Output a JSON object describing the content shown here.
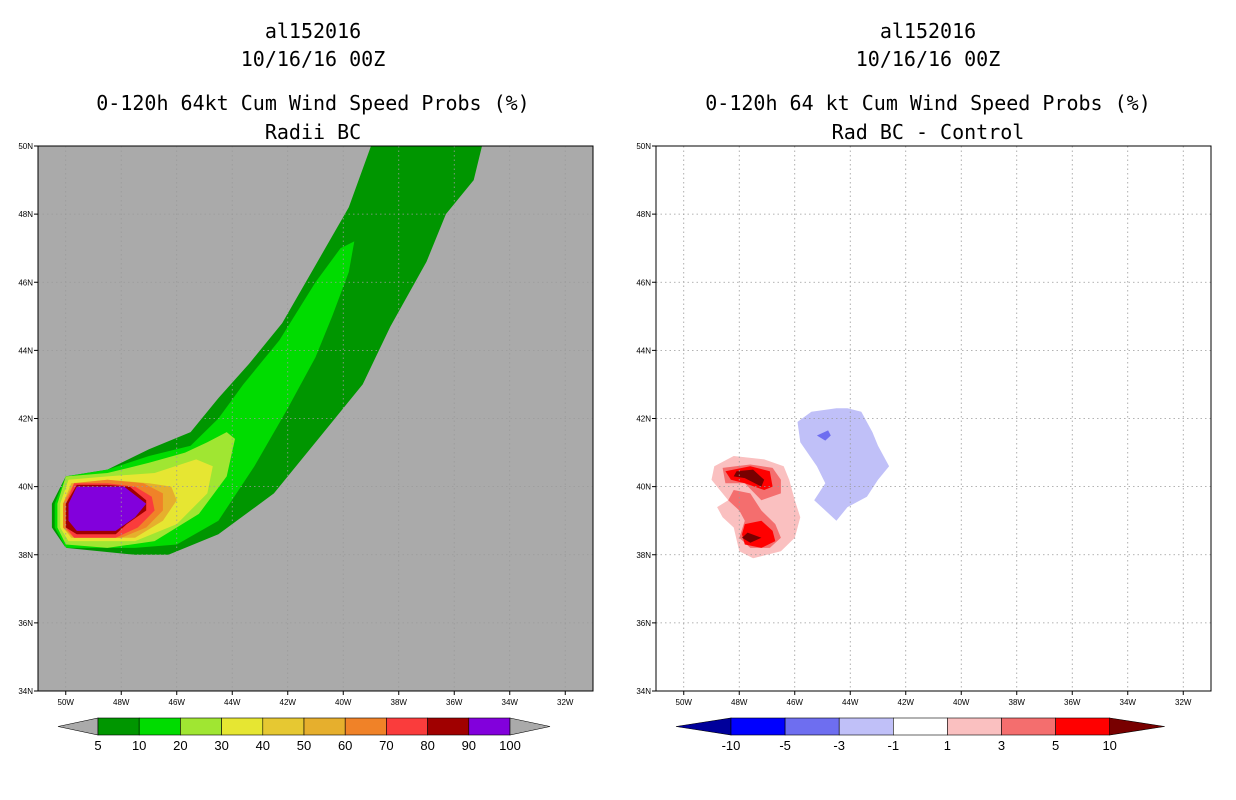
{
  "chart_data": [
    {
      "type": "heatmap",
      "title_lines": [
        "al152016",
        "10/16/16 00Z",
        "0-120h 64kt Cum Wind Speed Probs (%)",
        "Radii BC"
      ],
      "xlabel": "",
      "ylabel": "",
      "xlim": [
        -51,
        -31
      ],
      "ylim": [
        34,
        50
      ],
      "x_ticks": [
        "50W",
        "48W",
        "46W",
        "44W",
        "42W",
        "40W",
        "38W",
        "36W",
        "34W",
        "32W"
      ],
      "x_tick_values": [
        -50,
        -48,
        -46,
        -44,
        -42,
        -40,
        -38,
        -36,
        -34,
        -32
      ],
      "y_ticks": [
        "34N",
        "36N",
        "38N",
        "40N",
        "42N",
        "44N",
        "46N",
        "48N",
        "50N"
      ],
      "y_tick_values": [
        34,
        36,
        38,
        40,
        42,
        44,
        46,
        48,
        50
      ],
      "background": "#aaaaaa",
      "grid": true,
      "colorbar": {
        "labels": [
          "5",
          "10",
          "20",
          "30",
          "40",
          "50",
          "60",
          "70",
          "80",
          "90",
          "100"
        ],
        "colors": [
          "#009600",
          "#00dc00",
          "#a0e632",
          "#e6e632",
          "#e6c832",
          "#e6af2d",
          "#f08228",
          "#fa3c3c",
          "#a00000",
          "#8200dc"
        ],
        "left_arrow": "#aaaaaa",
        "right_arrow": "#aaaaaa"
      },
      "contours": [
        {
          "level": 5,
          "color": "#009600",
          "points": [
            [
              -50.5,
              39.5
            ],
            [
              -50,
              40.3
            ],
            [
              -48.5,
              40.5
            ],
            [
              -47,
              41.1
            ],
            [
              -45.5,
              41.6
            ],
            [
              -44.5,
              42.6
            ],
            [
              -43.4,
              43.6
            ],
            [
              -42.2,
              44.8
            ],
            [
              -41,
              46.5
            ],
            [
              -39.8,
              48.2
            ],
            [
              -39,
              50
            ],
            [
              -35,
              50
            ],
            [
              -35.3,
              49
            ],
            [
              -36.3,
              48
            ],
            [
              -37,
              46.6
            ],
            [
              -38.3,
              44.7
            ],
            [
              -39.3,
              43
            ],
            [
              -40.8,
              41.5
            ],
            [
              -42.5,
              39.8
            ],
            [
              -44.5,
              38.6
            ],
            [
              -46.3,
              38
            ],
            [
              -47.5,
              38
            ],
            [
              -50,
              38.2
            ],
            [
              -50.5,
              38.8
            ]
          ]
        },
        {
          "level": 10,
          "color": "#00dc00",
          "points": [
            [
              -50.4,
              39.5
            ],
            [
              -50,
              40.3
            ],
            [
              -48.5,
              40.5
            ],
            [
              -47,
              40.9
            ],
            [
              -45.5,
              41.2
            ],
            [
              -44.5,
              42
            ],
            [
              -43.6,
              43
            ],
            [
              -42.3,
              44.3
            ],
            [
              -41,
              46
            ],
            [
              -40.1,
              47
            ],
            [
              -39.6,
              47.2
            ],
            [
              -39.8,
              46.3
            ],
            [
              -40.4,
              45
            ],
            [
              -41,
              43.8
            ],
            [
              -42,
              42.3
            ],
            [
              -43.2,
              40.6
            ],
            [
              -44.5,
              39
            ],
            [
              -46,
              38.3
            ],
            [
              -47.5,
              38.2
            ],
            [
              -50,
              38.2
            ],
            [
              -50.4,
              38.8
            ]
          ]
        },
        {
          "level": 20,
          "color": "#a0e632",
          "points": [
            [
              -50.3,
              39.5
            ],
            [
              -50,
              40.3
            ],
            [
              -48.5,
              40.4
            ],
            [
              -47,
              40.7
            ],
            [
              -45.7,
              41
            ],
            [
              -44.9,
              41.3
            ],
            [
              -44.2,
              41.6
            ],
            [
              -43.9,
              41.4
            ],
            [
              -44.2,
              40.3
            ],
            [
              -45.2,
              39.2
            ],
            [
              -46.8,
              38.4
            ],
            [
              -48.5,
              38.2
            ],
            [
              -50,
              38.3
            ],
            [
              -50.3,
              38.8
            ]
          ]
        },
        {
          "level": 30,
          "color": "#e6e632",
          "points": [
            [
              -50.2,
              39.5
            ],
            [
              -49.9,
              40.2
            ],
            [
              -48.5,
              40.3
            ],
            [
              -46.8,
              40.4
            ],
            [
              -45.3,
              40.8
            ],
            [
              -44.7,
              40.6
            ],
            [
              -44.9,
              39.8
            ],
            [
              -46,
              38.9
            ],
            [
              -47.5,
              38.4
            ],
            [
              -49.9,
              38.4
            ],
            [
              -50.2,
              38.8
            ]
          ]
        },
        {
          "level": 50,
          "color": "#e6af2d",
          "points": [
            [
              -50.1,
              39.5
            ],
            [
              -49.8,
              40.1
            ],
            [
              -48.5,
              40.2
            ],
            [
              -47,
              40.1
            ],
            [
              -46.2,
              40
            ],
            [
              -46,
              39.6
            ],
            [
              -46.5,
              39
            ],
            [
              -47.5,
              38.5
            ],
            [
              -49.8,
              38.5
            ],
            [
              -50.1,
              38.8
            ]
          ]
        },
        {
          "level": 60,
          "color": "#f08228",
          "points": [
            [
              -50.1,
              39.5
            ],
            [
              -49.7,
              40.1
            ],
            [
              -48.5,
              40.2
            ],
            [
              -47.2,
              40.1
            ],
            [
              -46.5,
              39.8
            ],
            [
              -46.5,
              39.3
            ],
            [
              -47.1,
              38.8
            ],
            [
              -48,
              38.5
            ],
            [
              -49.7,
              38.5
            ],
            [
              -50.1,
              38.8
            ]
          ]
        },
        {
          "level": 70,
          "color": "#fa3c3c",
          "points": [
            [
              -50,
              39.5
            ],
            [
              -49.7,
              40.1
            ],
            [
              -48.5,
              40.1
            ],
            [
              -47.5,
              40
            ],
            [
              -46.9,
              39.7
            ],
            [
              -46.8,
              39.3
            ],
            [
              -47.4,
              38.8
            ],
            [
              -48.2,
              38.5
            ],
            [
              -49.7,
              38.5
            ],
            [
              -50,
              38.8
            ]
          ]
        },
        {
          "level": 80,
          "color": "#a00000",
          "points": [
            [
              -50,
              39.5
            ],
            [
              -49.6,
              40.05
            ],
            [
              -48.5,
              40.05
            ],
            [
              -47.7,
              40
            ],
            [
              -47.1,
              39.6
            ],
            [
              -47.1,
              39.3
            ],
            [
              -47.8,
              38.9
            ],
            [
              -48.2,
              38.6
            ],
            [
              -49.6,
              38.6
            ],
            [
              -50,
              38.8
            ]
          ]
        },
        {
          "level": 90,
          "color": "#8200dc",
          "points": [
            [
              -49.9,
              39.5
            ],
            [
              -49.6,
              40
            ],
            [
              -47.9,
              40
            ],
            [
              -47.1,
              39.5
            ],
            [
              -47.5,
              39.1
            ],
            [
              -48.2,
              38.7
            ],
            [
              -49.6,
              38.7
            ],
            [
              -49.9,
              39
            ]
          ]
        }
      ]
    },
    {
      "type": "heatmap",
      "title_lines": [
        "al152016",
        "10/16/16 00Z",
        "0-120h 64 kt Cum Wind Speed Probs (%)",
        "Rad BC - Control"
      ],
      "xlabel": "",
      "ylabel": "",
      "xlim": [
        -51,
        -31
      ],
      "ylim": [
        34,
        50
      ],
      "x_ticks": [
        "50W",
        "48W",
        "46W",
        "44W",
        "42W",
        "40W",
        "38W",
        "36W",
        "34W",
        "32W"
      ],
      "x_tick_values": [
        -50,
        -48,
        -46,
        -44,
        -42,
        -40,
        -38,
        -36,
        -34,
        -32
      ],
      "y_ticks": [
        "34N",
        "36N",
        "38N",
        "40N",
        "42N",
        "44N",
        "46N",
        "48N",
        "50N"
      ],
      "y_tick_values": [
        34,
        36,
        38,
        40,
        42,
        44,
        46,
        48,
        50
      ],
      "background": "#ffffff",
      "grid": true,
      "colorbar": {
        "labels": [
          "-10",
          "-5",
          "-3",
          "-1",
          "1",
          "3",
          "5",
          "10"
        ],
        "colors": [
          "#0000ff",
          "#6e6ef0",
          "#c0c0f8",
          "#ffffff",
          "#fac0c0",
          "#f46e6e",
          "#ff0000"
        ],
        "left_arrow": "#00009b",
        "right_arrow": "#780000"
      },
      "contours": [
        {
          "level": 1,
          "color": "#fac0c0",
          "points": [
            [
              -48.9,
              40.6
            ],
            [
              -48.2,
              40.9
            ],
            [
              -47.1,
              40.8
            ],
            [
              -46.4,
              40.6
            ],
            [
              -46.2,
              40.2
            ],
            [
              -46,
              39.6
            ],
            [
              -45.8,
              39.1
            ],
            [
              -46,
              38.5
            ],
            [
              -46.5,
              38.1
            ],
            [
              -47.5,
              37.9
            ],
            [
              -48,
              38.1
            ],
            [
              -48.2,
              38.8
            ],
            [
              -48.6,
              39.1
            ],
            [
              -48.8,
              39.4
            ],
            [
              -48.4,
              39.6
            ],
            [
              -48.7,
              39.9
            ],
            [
              -49,
              40.2
            ]
          ]
        },
        {
          "level": 3,
          "color": "#f46e6e",
          "points": [
            [
              -48.6,
              40.55
            ],
            [
              -47.6,
              40.65
            ],
            [
              -46.8,
              40.55
            ],
            [
              -46.5,
              40.2
            ],
            [
              -46.5,
              39.8
            ],
            [
              -47.2,
              39.6
            ],
            [
              -47.8,
              40.1
            ],
            [
              -48.5,
              40.1
            ]
          ]
        },
        {
          "level": 3,
          "color": "#f46e6e",
          "points": [
            [
              -48.2,
              39.9
            ],
            [
              -47.6,
              39.8
            ],
            [
              -47.2,
              39.3
            ],
            [
              -46.7,
              38.9
            ],
            [
              -46.5,
              38.5
            ],
            [
              -46.9,
              38.2
            ],
            [
              -47.6,
              38.2
            ],
            [
              -48,
              38.5
            ],
            [
              -47.8,
              39
            ],
            [
              -48,
              39.3
            ],
            [
              -48.4,
              39.6
            ]
          ]
        },
        {
          "level": 5,
          "color": "#ff0000",
          "points": [
            [
              -48.5,
              40.45
            ],
            [
              -47.6,
              40.6
            ],
            [
              -46.9,
              40.45
            ],
            [
              -46.8,
              40
            ],
            [
              -47.1,
              39.9
            ],
            [
              -47.8,
              40.1
            ],
            [
              -48.3,
              40.2
            ]
          ]
        },
        {
          "level": 5,
          "color": "#ff0000",
          "points": [
            [
              -47.8,
              38.9
            ],
            [
              -47.2,
              39
            ],
            [
              -46.8,
              38.7
            ],
            [
              -46.7,
              38.4
            ],
            [
              -47.2,
              38.2
            ],
            [
              -47.8,
              38.3
            ],
            [
              -47.9,
              38.6
            ]
          ]
        },
        {
          "level": 10,
          "color": "#780000",
          "points": [
            [
              -48.1,
              40.45
            ],
            [
              -47.5,
              40.5
            ],
            [
              -47.1,
              40.2
            ],
            [
              -47.2,
              40.0
            ],
            [
              -47.8,
              40.25
            ],
            [
              -48.2,
              40.3
            ]
          ]
        },
        {
          "level": 10,
          "color": "#780000",
          "points": [
            [
              -47.7,
              38.65
            ],
            [
              -47.2,
              38.5
            ],
            [
              -47.6,
              38.35
            ],
            [
              -47.9,
              38.5
            ]
          ]
        },
        {
          "level": -1,
          "color": "#c0c0f8",
          "points": [
            [
              -45.9,
              41.9
            ],
            [
              -45.4,
              42.2
            ],
            [
              -44.5,
              42.3
            ],
            [
              -44.1,
              42.3
            ],
            [
              -43.6,
              42.2
            ],
            [
              -43.2,
              41.6
            ],
            [
              -43,
              41.2
            ],
            [
              -42.6,
              40.6
            ],
            [
              -43,
              40.2
            ],
            [
              -43.4,
              39.7
            ],
            [
              -44.1,
              39.4
            ],
            [
              -44.5,
              39
            ],
            [
              -45.3,
              39.6
            ],
            [
              -44.9,
              40.1
            ],
            [
              -45.2,
              40.6
            ],
            [
              -45.8,
              41.3
            ]
          ]
        },
        {
          "level": -3,
          "color": "#6e6ef0",
          "points": [
            [
              -45.2,
              41.5
            ],
            [
              -44.8,
              41.65
            ],
            [
              -44.7,
              41.5
            ],
            [
              -44.9,
              41.35
            ]
          ]
        }
      ]
    }
  ]
}
